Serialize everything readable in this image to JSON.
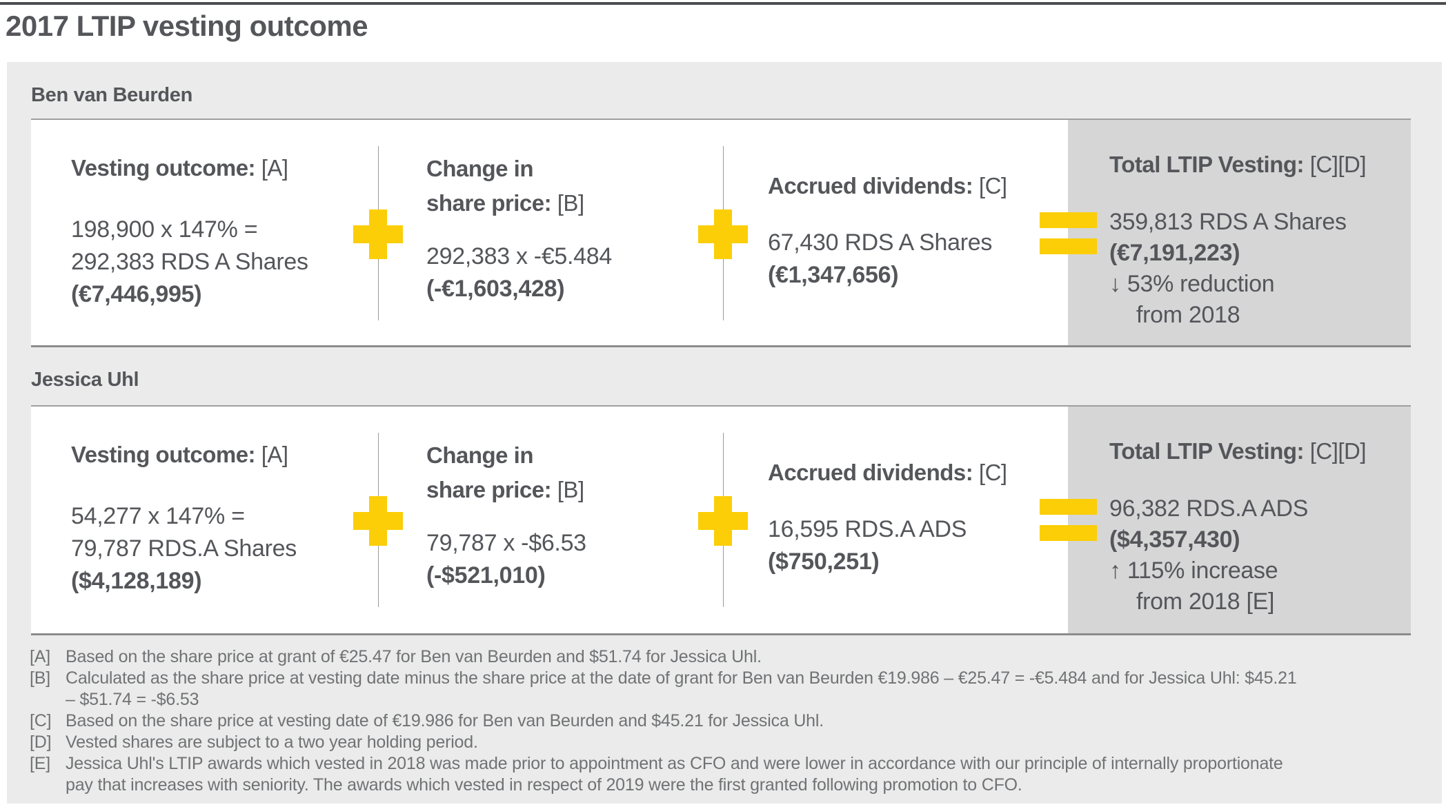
{
  "page": {
    "title": "2017 LTIP vesting outcome"
  },
  "colors": {
    "accent_yellow": "#fbce07",
    "panel_background": "#ebebeb",
    "total_block_background": "#d6d6d7",
    "text": "#54565a"
  },
  "icons": {
    "plus": "plus-cross-shape",
    "equals": "double-bar-shape"
  },
  "sections": [
    {
      "person": "Ben van Beurden",
      "vesting": {
        "heading": "Vesting outcome:",
        "ref": "[A]",
        "line1": "198,900 x 147% =",
        "line2": "292,383 RDS A Shares",
        "amount": "(€7,446,995)"
      },
      "change": {
        "heading_line1": "Change in",
        "heading_line2": "share price:",
        "ref": "[B]",
        "line1": "292,383 x -€5.484",
        "amount": "(-€1,603,428)"
      },
      "dividends": {
        "heading": "Accrued dividends:",
        "ref": "[C]",
        "line1": "67,430 RDS A Shares",
        "amount": "(€1,347,656)"
      },
      "total": {
        "heading": "Total LTIP Vesting:",
        "ref": "[C][D]",
        "shares": "359,813 RDS A Shares",
        "amount": "(€7,191,223)",
        "arrow": "↓",
        "change_line1": "53% reduction",
        "change_line2": "from 2018"
      }
    },
    {
      "person": "Jessica Uhl",
      "vesting": {
        "heading": "Vesting outcome:",
        "ref": "[A]",
        "line1": "54,277 x 147% =",
        "line2": "79,787 RDS.A Shares",
        "amount": "($4,128,189)"
      },
      "change": {
        "heading_line1": "Change in",
        "heading_line2": "share price:",
        "ref": "[B]",
        "line1": "79,787 x -$6.53",
        "amount": "(-$521,010)"
      },
      "dividends": {
        "heading": "Accrued dividends:",
        "ref": "[C]",
        "line1": "16,595 RDS.A ADS",
        "amount": "($750,251)"
      },
      "total": {
        "heading": "Total LTIP Vesting:",
        "ref": "[C][D]",
        "shares": "96,382 RDS.A ADS",
        "amount": "($4,357,430)",
        "arrow": "↑",
        "change_line1": "115% increase",
        "change_line2": "from 2018 [E]"
      }
    }
  ],
  "footnotes": [
    {
      "label": "[A]",
      "text": "Based on the share price at grant of €25.47 for Ben van Beurden and $51.74 for Jessica Uhl."
    },
    {
      "label": "[B]",
      "text": "Calculated as the share price at vesting date minus the share price at the date of grant for Ben van Beurden €19.986 – €25.47 = -€5.484 and for Jessica Uhl: $45.21 – $51.74 = -$6.53"
    },
    {
      "label": "[C]",
      "text": "Based on the share price at vesting date of €19.986 for Ben van Beurden and $45.21 for Jessica Uhl."
    },
    {
      "label": "[D]",
      "text": "Vested shares are subject to a two year holding period."
    },
    {
      "label": "[E]",
      "text": "Jessica Uhl's LTIP awards which vested in 2018 was made prior to appointment as CFO and were lower in accordance with our principle of internally proportionate pay that increases with seniority. The awards which vested in respect of 2019 were the first granted following promotion to CFO."
    }
  ]
}
